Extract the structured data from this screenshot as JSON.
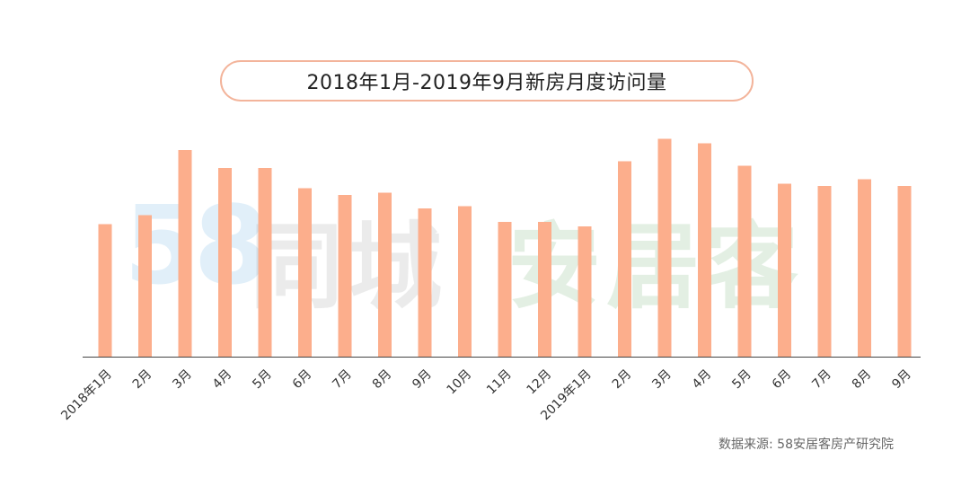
{
  "title": "2018年1月-2019年9月新房月度访问量",
  "watermark": {
    "num": "58",
    "tongcheng": "同城",
    "anjuke": "安居客"
  },
  "source": "数据来源: 58安居客房产研究院",
  "colors": {
    "bar": "#fcae8c",
    "axis": "#444444",
    "title_border": "#f3b49b"
  },
  "chart_data": {
    "type": "bar",
    "title": "2018年1月-2019年9月新房月度访问量",
    "xlabel": "",
    "ylabel": "",
    "y_axis_visible": false,
    "grid": false,
    "ylim": [
      0,
      100
    ],
    "categories": [
      "2018年1月",
      "2月",
      "3月",
      "4月",
      "5月",
      "6月",
      "7月",
      "8月",
      "9月",
      "10月",
      "11月",
      "12月",
      "2019年1月",
      "2月",
      "3月",
      "4月",
      "5月",
      "6月",
      "7月",
      "8月",
      "9月"
    ],
    "values": [
      59,
      63,
      92,
      84,
      84,
      75,
      72,
      73,
      66,
      67,
      60,
      60,
      58,
      87,
      97,
      95,
      85,
      77,
      76,
      79,
      76
    ]
  }
}
